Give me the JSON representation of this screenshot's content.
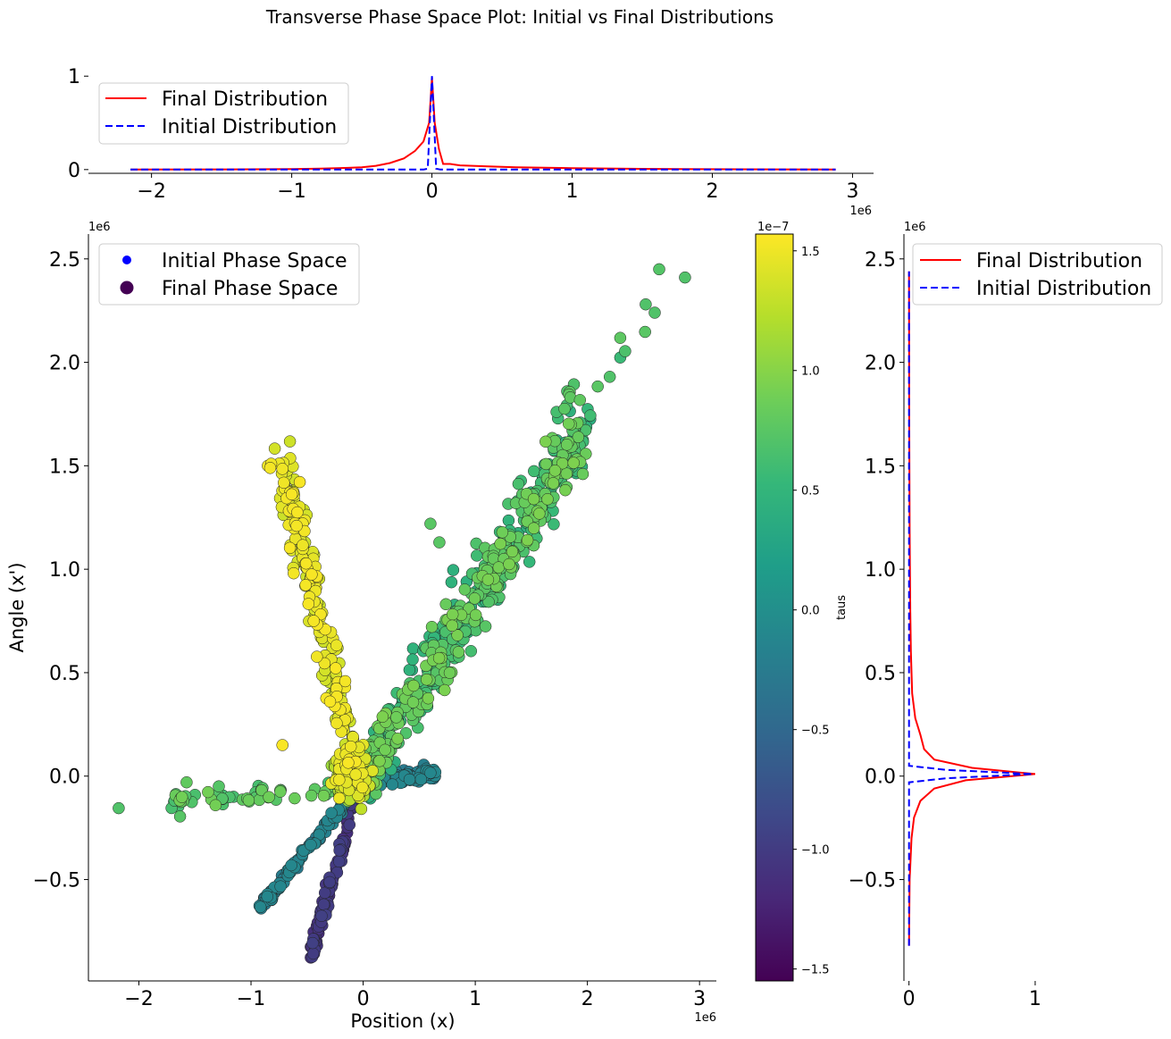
{
  "title": "Transverse Phase Space Plot: Initial vs Final Distributions",
  "colors": {
    "final": "#ff0000",
    "initial": "#0000ff",
    "axis": "#000000",
    "colormap": [
      "#440154",
      "#482878",
      "#3e4989",
      "#31688e",
      "#26828e",
      "#1f9e89",
      "#35b779",
      "#6ece58",
      "#b5de2b",
      "#fde725"
    ]
  },
  "chart_data": [
    {
      "id": "top-marginal",
      "type": "line",
      "xlim": [
        -2450000,
        3150000
      ],
      "ylim": [
        -0.04,
        1.05
      ],
      "xticks": [
        -2000000,
        -1000000,
        0,
        1000000,
        2000000,
        3000000
      ],
      "xtick_labels": [
        "−2",
        "−1",
        "0",
        "1",
        "2",
        "3"
      ],
      "yticks": [
        0,
        1
      ],
      "ytick_labels": [
        "0",
        "1"
      ],
      "offset_label": "1e6",
      "legend_position": "upper left",
      "series": [
        {
          "name": "Final Distribution",
          "style": "solid",
          "x": [
            -2150000,
            -1500000,
            -1000000,
            -800000,
            -600000,
            -500000,
            -400000,
            -300000,
            -200000,
            -120000,
            -60000,
            -20000,
            0,
            20000,
            50000,
            80000,
            130000,
            200000,
            400000,
            600000,
            1000000,
            1500000,
            2000000,
            2500000,
            2880000
          ],
          "y": [
            0,
            0.002,
            0.005,
            0.01,
            0.018,
            0.025,
            0.04,
            0.07,
            0.12,
            0.2,
            0.3,
            0.5,
            0.98,
            0.5,
            0.22,
            0.06,
            0.06,
            0.045,
            0.035,
            0.025,
            0.015,
            0.008,
            0.004,
            0.002,
            0.001
          ]
        },
        {
          "name": "Initial Distribution",
          "style": "dashed",
          "x": [
            -2150000,
            -60000,
            -30000,
            0,
            30000,
            60000,
            2880000
          ],
          "y": [
            0,
            0,
            0.01,
            1.0,
            0.01,
            0,
            0
          ]
        }
      ]
    },
    {
      "id": "main-scatter",
      "type": "scatter",
      "xlabel": "Position (x)",
      "ylabel": "Angle (x')",
      "xlim": [
        -2450000,
        3150000
      ],
      "ylim": [
        -990000,
        2620000
      ],
      "xticks": [
        -2000000,
        -1000000,
        0,
        1000000,
        2000000,
        3000000
      ],
      "xtick_labels": [
        "−2",
        "−1",
        "0",
        "1",
        "2",
        "3"
      ],
      "yticks": [
        -500000,
        0,
        500000,
        1000000,
        1500000,
        2000000,
        2500000
      ],
      "ytick_labels": [
        "−0.5",
        "0.0",
        "0.5",
        "1.0",
        "1.5",
        "2.0",
        "2.5"
      ],
      "x_offset_label": "1e6",
      "y_offset_label": "1e6",
      "legend_position": "upper left",
      "series": [
        {
          "name": "Initial Phase Space",
          "marker": "small dot",
          "color": "#0000ff"
        },
        {
          "name": "Final Phase Space",
          "marker": "large dot",
          "color": "#440154"
        }
      ],
      "colorbar": {
        "label": "taus",
        "offset_label": "1e−7",
        "range": [
          -1.55,
          1.57
        ],
        "ticks": [
          -1.5,
          -1.0,
          -0.5,
          0.0,
          0.5,
          1.0,
          1.5
        ],
        "tick_labels": [
          "−1.5",
          "−1.0",
          "−0.5",
          "0.0",
          "0.5",
          "1.0",
          "1.5"
        ]
      },
      "clusters": [
        {
          "name": "main diagonal band",
          "x_start": 0,
          "x_end": 2000000,
          "y_start": 0,
          "y_end": 1700000,
          "spread": 80000,
          "count": 520,
          "tau_range": [
            0.4,
            0.95
          ]
        },
        {
          "name": "upper diagonal outliers",
          "x_start": 1600000,
          "x_end": 2900000,
          "y_start": 1650000,
          "y_end": 2450000,
          "spread": 50000,
          "count": 14,
          "tau_range": [
            0.55,
            0.8
          ]
        },
        {
          "name": "left arm",
          "x_start": -700000,
          "x_end": -50000,
          "y_start": 1450000,
          "y_end": 0,
          "spread": 70000,
          "count": 230,
          "tau_range": [
            1.3,
            1.55
          ]
        },
        {
          "name": "horizontal right arm",
          "x_start": 0,
          "x_end": 650000,
          "y_start": -10000,
          "y_end": 10000,
          "spread": 15000,
          "count": 120,
          "tau_range": [
            -0.3,
            -0.1
          ]
        },
        {
          "name": "horizontal left arm",
          "x_start": -1700000,
          "x_end": -200000,
          "y_start": -120000,
          "y_end": -50000,
          "spread": 25000,
          "count": 60,
          "tau_range": [
            0.6,
            0.9
          ]
        },
        {
          "name": "lower diagonal arm",
          "x_start": -920000,
          "x_end": -20000,
          "y_start": -640000,
          "y_end": -30000,
          "spread": 15000,
          "count": 140,
          "tau_range": [
            -0.3,
            -0.1
          ]
        },
        {
          "name": "lower steep arm",
          "x_start": -450000,
          "x_end": -30000,
          "y_start": -840000,
          "y_end": -30000,
          "spread": 20000,
          "count": 110,
          "tau_range": [
            -1.15,
            -0.95
          ]
        },
        {
          "name": "core",
          "x_start": -250000,
          "x_end": 50000,
          "y_start": 0,
          "y_end": 0,
          "spread": 60000,
          "count": 120,
          "tau_range": [
            1.0,
            1.5
          ]
        }
      ],
      "notable_points": [
        {
          "x": -2180000,
          "y": -155000,
          "tau": 0.7
        },
        {
          "x": 2870000,
          "y": 2410000,
          "tau": 0.7
        },
        {
          "x": 2640000,
          "y": 2450000,
          "tau": 0.72
        },
        {
          "x": 2520000,
          "y": 2280000,
          "tau": 0.7
        },
        {
          "x": 2600000,
          "y": 2240000,
          "tau": 0.7
        },
        {
          "x": 2200000,
          "y": 1930000,
          "tau": 0.7
        },
        {
          "x": 1820000,
          "y": 1860000,
          "tau": 0.7
        },
        {
          "x": -820000,
          "y": 1510000,
          "tau": 1.5
        },
        {
          "x": -850000,
          "y": 1500000,
          "tau": 1.5
        },
        {
          "x": -700000,
          "y": 1390000,
          "tau": 1.5
        },
        {
          "x": 600000,
          "y": 1220000,
          "tau": 0.75
        },
        {
          "x": 680000,
          "y": 1130000,
          "tau": 0.75
        },
        {
          "x": -430000,
          "y": -840000,
          "tau": -1.0
        },
        {
          "x": -910000,
          "y": -640000,
          "tau": -0.2
        },
        {
          "x": -720000,
          "y": 150000,
          "tau": 1.55
        }
      ]
    },
    {
      "id": "right-marginal",
      "type": "line",
      "xlim": [
        -0.04,
        1.05
      ],
      "ylim": [
        -990000,
        2620000
      ],
      "xticks": [
        0,
        1
      ],
      "xtick_labels": [
        "0",
        "1"
      ],
      "yticks": [
        -500000,
        0,
        500000,
        1000000,
        1500000,
        2000000,
        2500000
      ],
      "ytick_labels": [
        "−0.5",
        "0.0",
        "0.5",
        "1.0",
        "1.5",
        "2.0",
        "2.5"
      ],
      "offset_label": "1e6",
      "legend_position": "upper left",
      "series": [
        {
          "name": "Final Distribution",
          "style": "solid",
          "y": [
            -820000,
            -500000,
            -300000,
            -200000,
            -120000,
            -60000,
            -20000,
            10000,
            40000,
            80000,
            130000,
            200000,
            280000,
            400000,
            600000,
            800000,
            1200000,
            1800000,
            2440000
          ],
          "x": [
            0,
            0.005,
            0.02,
            0.04,
            0.09,
            0.2,
            0.45,
            1.0,
            0.5,
            0.2,
            0.12,
            0.09,
            0.05,
            0.025,
            0.015,
            0.01,
            0.005,
            0.002,
            0
          ]
        },
        {
          "name": "Initial Distribution",
          "style": "dashed",
          "y": [
            -820000,
            -30000,
            -10000,
            10000,
            30000,
            50000,
            2440000
          ],
          "x": [
            0,
            0,
            0.3,
            0.98,
            0.3,
            0,
            0
          ]
        }
      ]
    }
  ]
}
